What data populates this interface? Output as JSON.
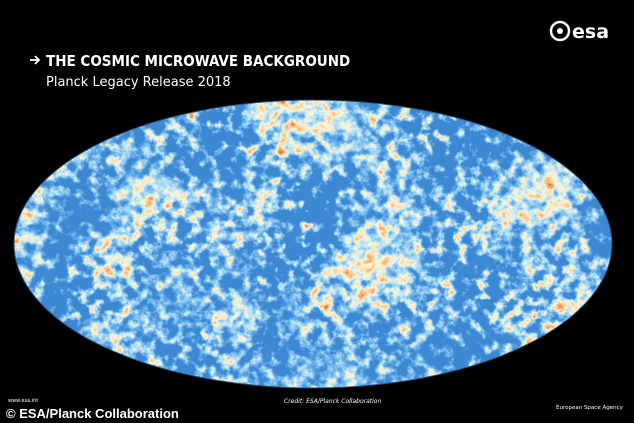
{
  "header": {
    "title": "THE COSMIC MICROWAVE BACKGROUND",
    "subtitle": "Planck Legacy Release 2018",
    "logo": "esa"
  },
  "footer": {
    "website": "www.esa.int",
    "credit": "Credit: ESA/Planck Collaboration",
    "agency": "European Space Agency",
    "copyright": "© ESA/Planck Collaboration"
  }
}
